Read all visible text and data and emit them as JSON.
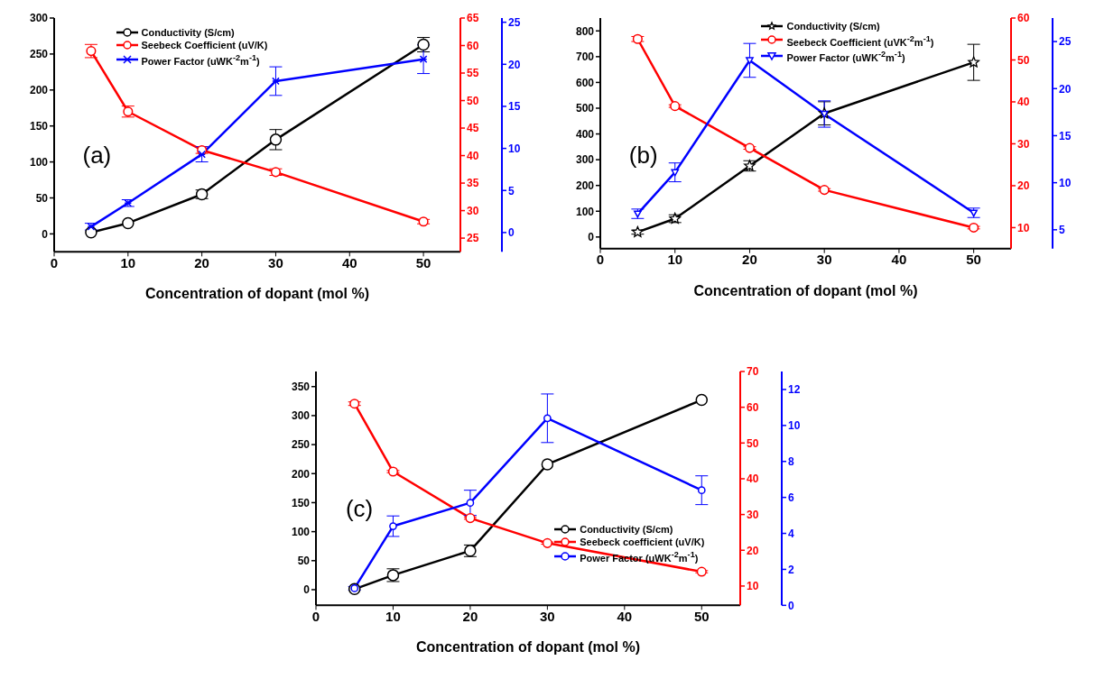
{
  "chart_data": [
    {
      "type": "line",
      "xlabel": "Concentration of dopant (mol %)",
      "annotations": [
        "(a)"
      ],
      "x": [
        5,
        10,
        20,
        30,
        50
      ],
      "xlim": [
        0,
        55
      ],
      "xticks": [
        0,
        10,
        20,
        30,
        40,
        50
      ],
      "ylim": [
        -25,
        300
      ],
      "yticks": [
        0,
        50,
        100,
        150,
        200,
        250,
        300
      ],
      "y2lim": [
        22.5,
        65
      ],
      "y2ticks": [
        25,
        30,
        35,
        40,
        45,
        50,
        55,
        60,
        65
      ],
      "y3lim": [
        -2.3,
        25.5
      ],
      "y3ticks": [
        0,
        5,
        10,
        15,
        20,
        25
      ],
      "legend": "top left",
      "line_style": "solid",
      "series": [
        {
          "name": "Conductivity (S/cm)",
          "color": "#000000",
          "marker": "circle",
          "values": [
            2,
            15,
            55,
            131,
            263
          ],
          "errors": [
            null,
            null,
            6,
            14,
            10
          ]
        },
        {
          "name": "Seebeck Coefficient (uV/K)",
          "color": "#ff0000",
          "axis": "y2",
          "marker": "circle",
          "values": [
            59,
            48,
            41,
            37,
            28
          ],
          "errors": [
            1.2,
            1,
            0.6,
            0.6,
            0.4
          ]
        },
        {
          "name": "Power Factor (uWK$^{-2}$m$^{-1}$)",
          "color": "#0000ff",
          "axis": "y3",
          "marker": "cross",
          "values": [
            0.7,
            3.5,
            9.3,
            18,
            20.6
          ],
          "errors": [
            0.4,
            0.4,
            0.9,
            1.7,
            1.7
          ]
        }
      ]
    },
    {
      "type": "line",
      "xlabel": "Concentration of dopant (mol %)",
      "annotations": [
        "(b)"
      ],
      "x": [
        5,
        10,
        20,
        30,
        50
      ],
      "xlim": [
        0,
        55
      ],
      "xticks": [
        0,
        10,
        20,
        30,
        40,
        50
      ],
      "ylim": [
        -45,
        850
      ],
      "yticks": [
        0,
        100,
        200,
        300,
        400,
        500,
        600,
        700,
        800
      ],
      "y2lim": [
        5,
        60
      ],
      "y2ticks": [
        10,
        20,
        30,
        40,
        50,
        60
      ],
      "y3lim": [
        3,
        27.5
      ],
      "y3ticks": [
        5,
        10,
        15,
        20,
        25
      ],
      "legend": "top right",
      "line_style": "solid",
      "series": [
        {
          "name": "Conductivity (S/cm)",
          "color": "#000000",
          "marker": "star",
          "values": [
            19,
            71,
            276,
            480,
            678
          ],
          "errors": [
            8,
            15,
            20,
            45,
            70
          ]
        },
        {
          "name": "Seebeck Coefficient (uVK$^{-2}$m$^{-1}$)",
          "color": "#ff0000",
          "axis": "y2",
          "marker": "circle",
          "values": [
            55,
            39,
            29,
            19,
            10
          ],
          "errors": [
            0.6,
            0.3,
            0.3,
            0.3,
            0.3
          ]
        },
        {
          "name": "Power Factor (uWK$^{-2}$m$^{-1}$)",
          "color": "#0000ff",
          "axis": "y3",
          "marker": "triangle",
          "values": [
            6.7,
            11.1,
            23,
            17.3,
            6.8
          ],
          "errors": [
            0.5,
            1,
            1.8,
            1.4,
            0.5
          ]
        }
      ]
    },
    {
      "type": "line",
      "xlabel": "Concentration of dopant (mol %)",
      "annotations": [
        "(c)"
      ],
      "x": [
        5,
        10,
        20,
        30,
        50
      ],
      "xlim": [
        0,
        55
      ],
      "xticks": [
        0,
        10,
        20,
        30,
        40,
        50
      ],
      "ylim": [
        -27,
        376
      ],
      "yticks": [
        0,
        50,
        100,
        150,
        200,
        250,
        300,
        350
      ],
      "y2lim": [
        4.6,
        70
      ],
      "y2ticks": [
        10,
        20,
        30,
        40,
        50,
        60,
        70
      ],
      "y3lim": [
        0,
        13
      ],
      "y3ticks": [
        0,
        2,
        4,
        6,
        8,
        10,
        12
      ],
      "legend": "right",
      "line_style": "solid",
      "series": [
        {
          "name": "Conductivity (S/cm)",
          "color": "#000000",
          "marker": "circle",
          "values": [
            1,
            25,
            67,
            216,
            327
          ],
          "errors": [
            null,
            11,
            10,
            null,
            null
          ]
        },
        {
          "name": "Seebeck coefficient (uV/K)",
          "color": "#ff0000",
          "axis": "y2",
          "marker": "circle",
          "values": [
            61,
            42,
            29,
            22,
            14
          ],
          "errors": [
            0.5,
            0.3,
            0.3,
            0.3,
            0.3
          ]
        },
        {
          "name": "Power Factor (uWK$^{-2}$m$^{-1}$)",
          "color": "#0000ff",
          "axis": "y3",
          "marker": "circle",
          "values": [
            0.95,
            4.4,
            5.7,
            10.4,
            6.4
          ],
          "errors": [
            0.1,
            0.57,
            0.7,
            1.35,
            0.8
          ]
        }
      ]
    }
  ]
}
